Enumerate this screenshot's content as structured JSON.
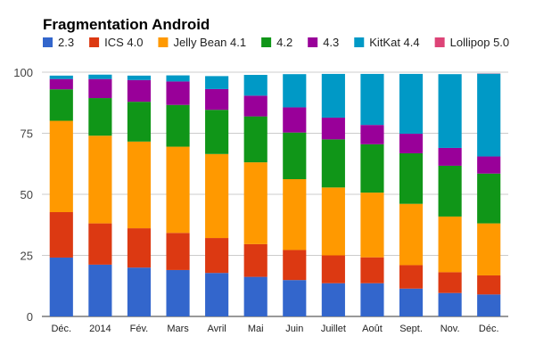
{
  "chart_data": {
    "type": "bar",
    "stacked": true,
    "title": "Fragmentation Android",
    "xlabel": "",
    "ylabel": "",
    "ylim": [
      0,
      100
    ],
    "yticks": [
      0,
      25,
      50,
      75,
      100
    ],
    "grid": true,
    "legend_position": "top",
    "categories": [
      "Déc.",
      "2014",
      "Fév.",
      "Mars",
      "Avril",
      "Mai",
      "Juin",
      "Juillet",
      "Août",
      "Sept.",
      "Nov.",
      "Déc."
    ],
    "series": [
      {
        "name": "2.3",
        "color": "#3366cc",
        "values": [
          24.1,
          21.2,
          20.0,
          19.0,
          17.8,
          16.2,
          14.9,
          13.6,
          13.6,
          11.4,
          9.6,
          9.0
        ]
      },
      {
        "name": "ICS 4.0",
        "color": "#dc3912",
        "values": [
          18.6,
          16.9,
          16.1,
          15.2,
          14.3,
          13.4,
          12.3,
          11.4,
          10.6,
          9.6,
          8.5,
          7.8
        ]
      },
      {
        "name": "Jelly Bean 4.1",
        "color": "#ff9900",
        "values": [
          37.4,
          35.9,
          35.5,
          35.3,
          34.4,
          33.5,
          29.0,
          27.8,
          26.5,
          25.1,
          22.8,
          21.3
        ]
      },
      {
        "name": "4.2",
        "color": "#109618",
        "values": [
          12.9,
          15.4,
          16.3,
          17.1,
          18.1,
          18.8,
          19.1,
          19.7,
          19.8,
          20.7,
          20.8,
          20.4
        ]
      },
      {
        "name": "4.3",
        "color": "#990099",
        "values": [
          4.2,
          7.8,
          8.9,
          9.6,
          8.5,
          8.5,
          10.3,
          8.9,
          7.9,
          8.0,
          7.3,
          7.0
        ]
      },
      {
        "name": "KitKat 4.4",
        "color": "#0099c6",
        "values": [
          1.4,
          1.8,
          1.8,
          2.5,
          5.3,
          8.5,
          13.6,
          17.9,
          20.9,
          24.5,
          30.2,
          33.9
        ]
      },
      {
        "name": "Lollipop 5.0",
        "color": "#dd4477",
        "values": [
          0,
          0,
          0,
          0,
          0,
          0,
          0,
          0,
          0,
          0,
          0,
          0.1
        ]
      }
    ]
  }
}
